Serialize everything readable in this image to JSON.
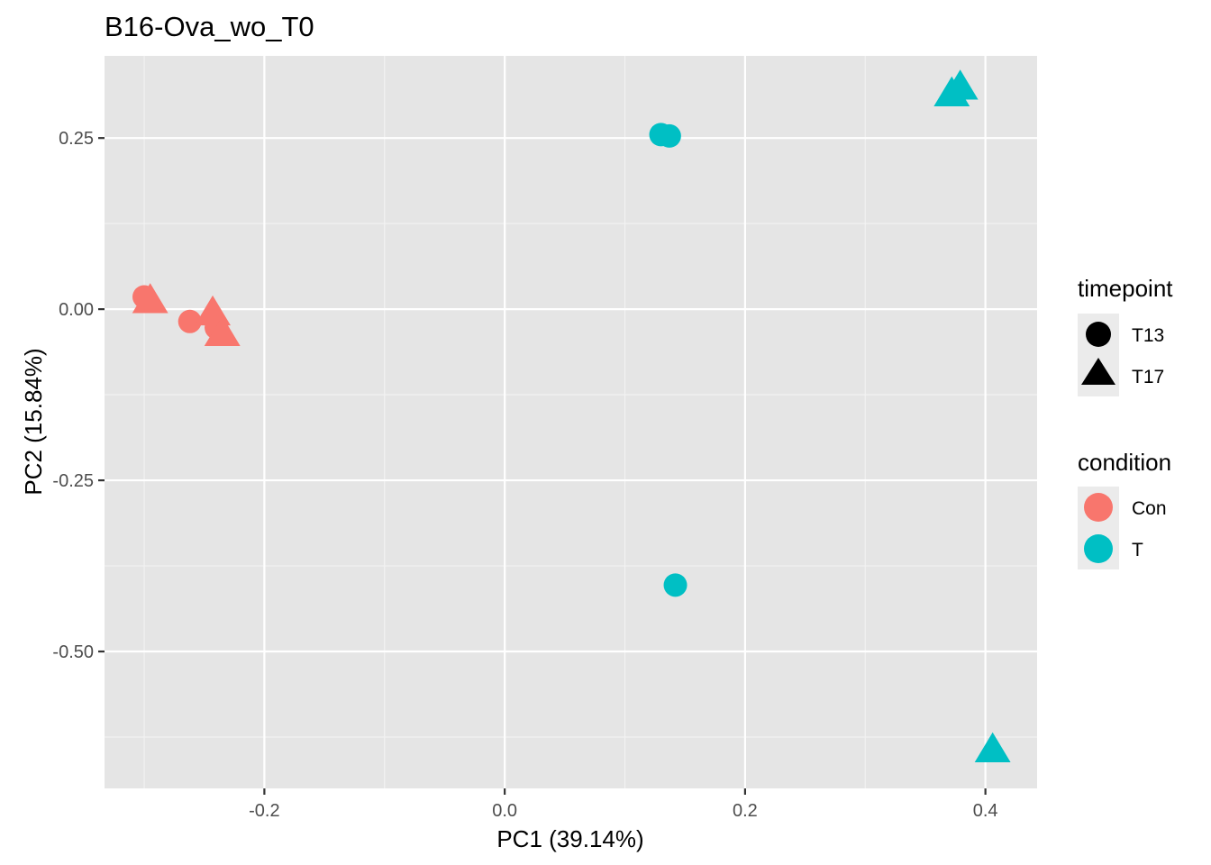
{
  "chart_data": {
    "type": "scatter",
    "title": "B16-Ova_wo_T0",
    "xlabel": "PC1 (39.14%)",
    "ylabel": "PC2 (15.84%)",
    "xlim": [
      -0.333,
      0.443
    ],
    "ylim": [
      -0.7,
      0.37
    ],
    "x_ticks": [
      -0.2,
      0.0,
      0.2,
      0.4
    ],
    "x_tick_labels": [
      "-0.2",
      "0.0",
      "0.2",
      "0.4"
    ],
    "y_ticks": [
      0.25,
      0.0,
      -0.25,
      -0.5
    ],
    "y_tick_labels": [
      "0.25",
      "0.00",
      "-0.25",
      "-0.50"
    ],
    "grid": true,
    "legend_position": "right",
    "legends": [
      {
        "title": "timepoint",
        "entries": [
          {
            "label": "T13",
            "shape": "circle"
          },
          {
            "label": "T17",
            "shape": "triangle"
          }
        ]
      },
      {
        "title": "condition",
        "entries": [
          {
            "label": "Con",
            "color": "#F8766D"
          },
          {
            "label": "T",
            "color": "#00BFC4"
          }
        ]
      }
    ],
    "points": [
      {
        "x": -0.3,
        "y": 0.018,
        "timepoint": "T13",
        "condition": "Con"
      },
      {
        "x": -0.295,
        "y": 0.013,
        "timepoint": "T17",
        "condition": "Con"
      },
      {
        "x": -0.262,
        "y": -0.018,
        "timepoint": "T13",
        "condition": "Con"
      },
      {
        "x": -0.243,
        "y": -0.005,
        "timepoint": "T17",
        "condition": "Con"
      },
      {
        "x": -0.24,
        "y": -0.027,
        "timepoint": "T13",
        "condition": "Con"
      },
      {
        "x": -0.235,
        "y": -0.035,
        "timepoint": "T17",
        "condition": "Con"
      },
      {
        "x": 0.13,
        "y": 0.255,
        "timepoint": "T13",
        "condition": "T"
      },
      {
        "x": 0.137,
        "y": 0.253,
        "timepoint": "T13",
        "condition": "T"
      },
      {
        "x": 0.142,
        "y": -0.403,
        "timepoint": "T13",
        "condition": "T"
      },
      {
        "x": 0.372,
        "y": 0.315,
        "timepoint": "T17",
        "condition": "T"
      },
      {
        "x": 0.379,
        "y": 0.325,
        "timepoint": "T17",
        "condition": "T"
      },
      {
        "x": 0.406,
        "y": -0.643,
        "timepoint": "T17",
        "condition": "T"
      }
    ]
  },
  "colors": {
    "panel_background": "#E5E5E5",
    "grid_major": "#FFFFFF",
    "legend_key_background": "#EBEBEB",
    "con": "#F8766D",
    "t": "#00BFC4"
  }
}
